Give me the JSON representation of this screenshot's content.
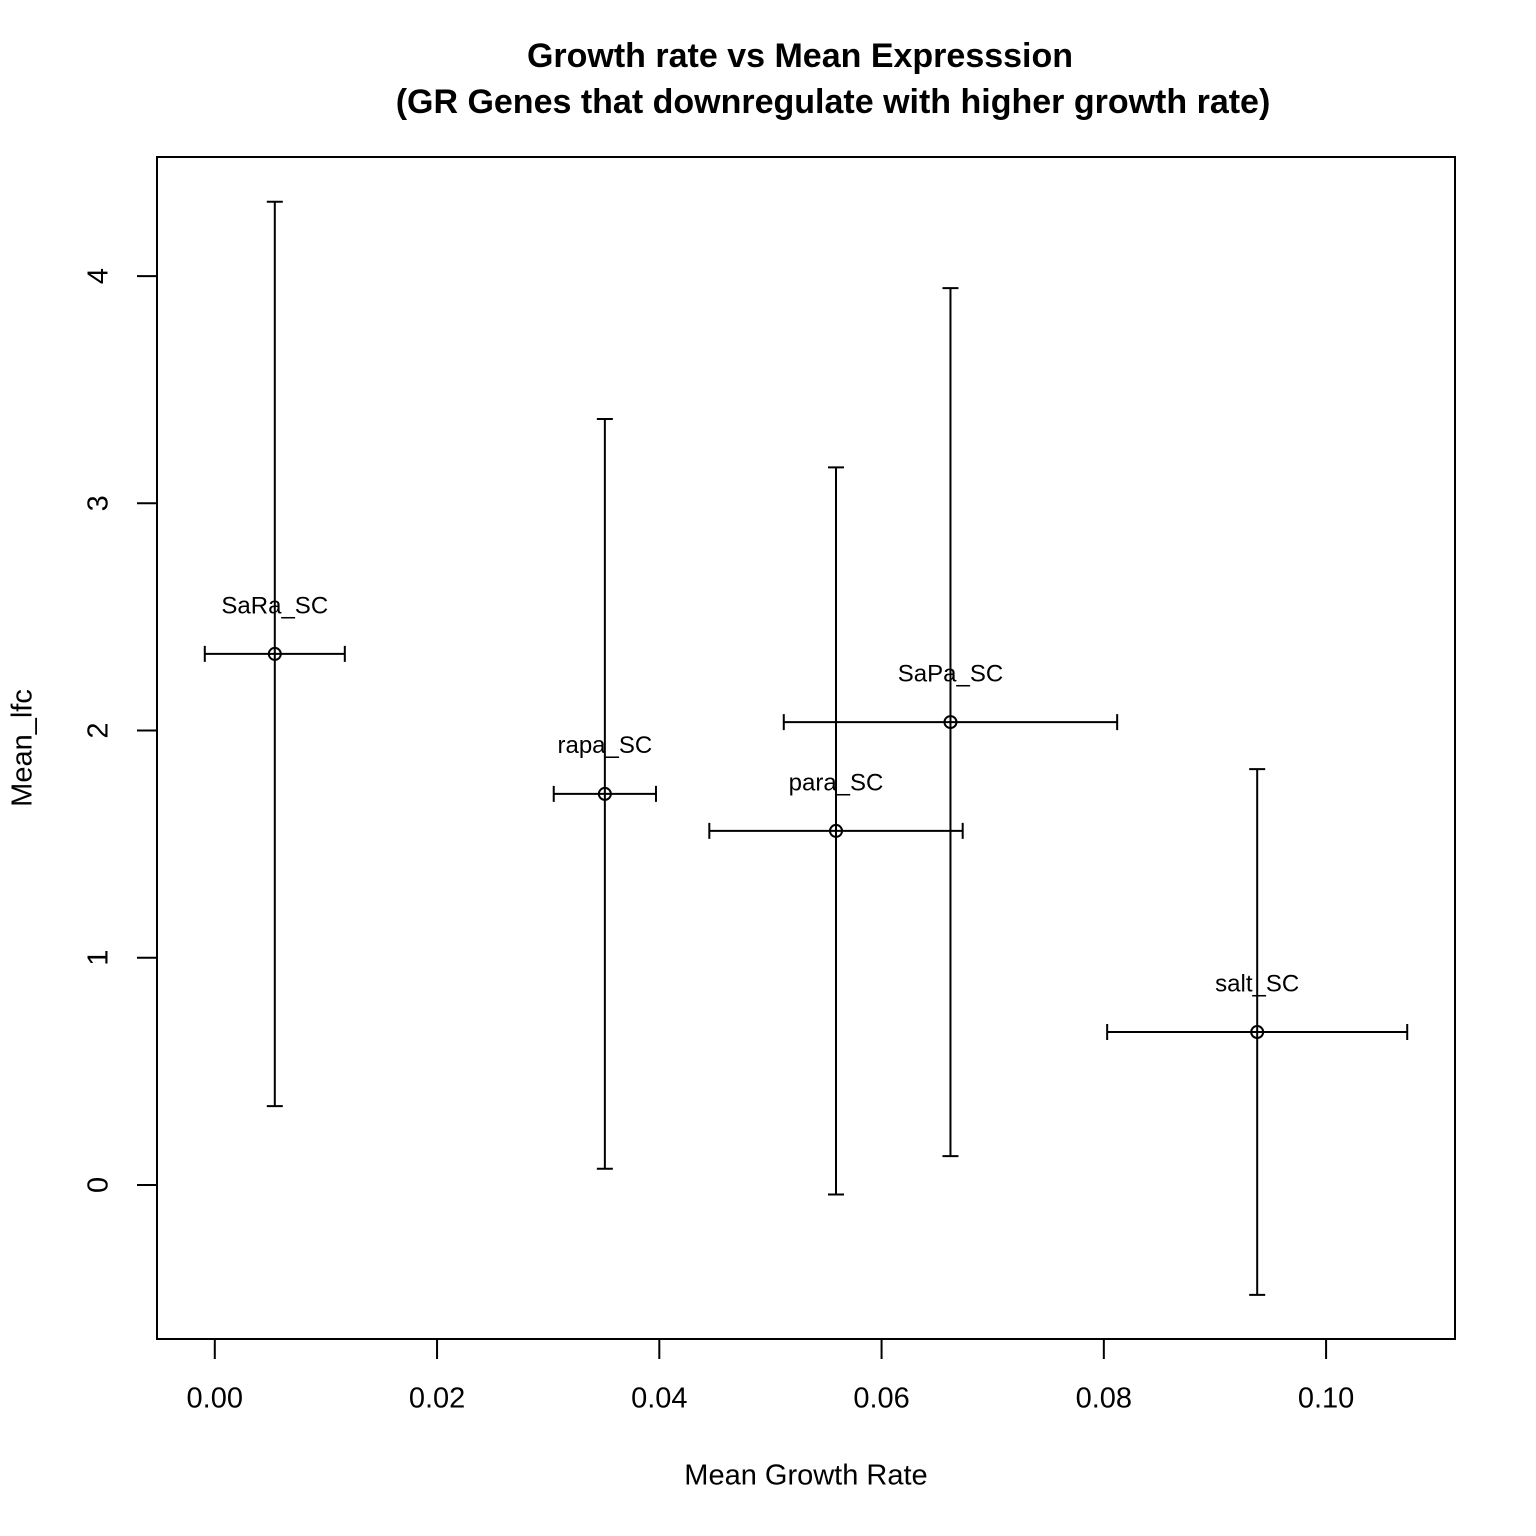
{
  "chart_data": {
    "type": "scatter",
    "title": "Growth rate vs Mean Expresssion",
    "subtitle": "(GR Genes that downregulate with higher growth rate)",
    "x_label": "Mean Growth Rate",
    "y_label": "Mean_lfc",
    "labels": [
      "SaRa_SC",
      "rapa_SC",
      "para_SC",
      "SaPa_SC",
      "salt_SC"
    ],
    "x": [
      0.0054,
      0.0351,
      0.0559,
      0.0662,
      0.0938
    ],
    "y": [
      2.337,
      1.721,
      1.558,
      2.037,
      0.673
    ],
    "xerr": [
      0.0063,
      0.0046,
      0.0114,
      0.015,
      0.0135
    ],
    "yerr": [
      1.99,
      1.65,
      1.6,
      1.91,
      1.157
    ],
    "color": "#000000",
    "xlim": [
      -0.0052,
      0.1116
    ],
    "ylim": [
      -0.678,
      4.524
    ],
    "xticks": [
      {
        "value": 0,
        "label": "0.00"
      },
      {
        "value": 0.02,
        "label": "0.02"
      },
      {
        "value": 0.04,
        "label": "0.04"
      },
      {
        "value": 0.06,
        "label": "0.06"
      },
      {
        "value": 0.08,
        "label": "0.08"
      },
      {
        "value": 0.1,
        "label": "0.10"
      }
    ],
    "yticks": [
      0,
      1,
      2,
      3,
      4
    ]
  }
}
